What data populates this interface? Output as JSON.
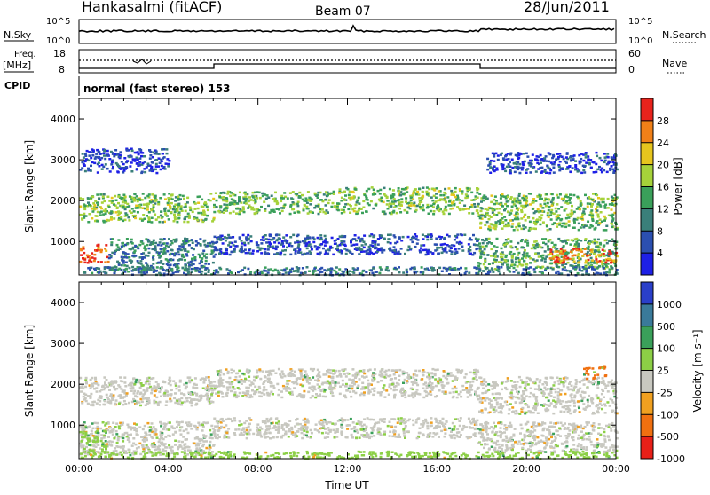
{
  "header": {
    "station": "Hankasalmi (fitACF)",
    "beam": "Beam 07",
    "date": "28/Jun/2011"
  },
  "top_panels": {
    "nsky_label": "N.Sky",
    "nsky_ticks": [
      "10^5",
      "10^0"
    ],
    "nsearch_label": "N.Search",
    "nsearch_ticks": [
      "10^5",
      "10^0"
    ],
    "freq_label_1": "Freq.",
    "freq_label_2": "[MHz]",
    "freq_ticks": [
      "18",
      "8"
    ],
    "nave_label": "Nave",
    "nave_ticks": [
      "60",
      "0"
    ],
    "cpid_label": "CPID",
    "cpid_text": "normal (fast stereo) 153"
  },
  "chart_data": [
    {
      "type": "heatmap",
      "panel": "power",
      "ylabel": "Slant Range [km]",
      "y_ticks": [
        "1000",
        "2000",
        "3000",
        "4000"
      ],
      "y_tick_values": [
        1000,
        2000,
        3000,
        4000
      ],
      "ylim": [
        180,
        4500
      ],
      "x_ticks": [
        "00:00",
        "04:00",
        "08:00",
        "12:00",
        "16:00",
        "20:00",
        "00:00"
      ],
      "x_tick_hours": [
        0,
        4,
        8,
        12,
        16,
        20,
        24
      ],
      "xlim_hours": [
        0,
        24
      ],
      "colorbar_label": "Power [dB]",
      "colorbar_ticks": [
        "4",
        "8",
        "12",
        "16",
        "20",
        "24",
        "28"
      ],
      "colorbar_tick_values": [
        4,
        8,
        12,
        16,
        20,
        24,
        28
      ],
      "colorbar_range": [
        0,
        32
      ],
      "colorbar_colors": [
        "#1e20e6",
        "#2b4fb0",
        "#3a7f7a",
        "#3aa05a",
        "#a6d23a",
        "#e6c51e",
        "#f08018",
        "#e8231c"
      ],
      "bands": [
        {
          "t0": 0.0,
          "t1": 6.0,
          "r0": 1500,
          "r1": 2200,
          "level": 16
        },
        {
          "t0": 6.0,
          "t1": 11.5,
          "r0": 1700,
          "r1": 2250,
          "level": 15
        },
        {
          "t0": 11.5,
          "t1": 17.8,
          "r0": 1700,
          "r1": 2350,
          "level": 16
        },
        {
          "t0": 17.8,
          "t1": 24.0,
          "r0": 1300,
          "r1": 2200,
          "level": 16
        },
        {
          "t0": 0.0,
          "t1": 1.3,
          "r0": 500,
          "r1": 950,
          "level": 28
        },
        {
          "t0": 1.3,
          "t1": 6.0,
          "r0": 300,
          "r1": 1100,
          "level": 10
        },
        {
          "t0": 6.0,
          "t1": 17.8,
          "r0": 700,
          "r1": 1200,
          "level": 6
        },
        {
          "t0": 17.8,
          "t1": 24.0,
          "r0": 350,
          "r1": 1100,
          "level": 14
        },
        {
          "t0": 21.0,
          "t1": 24.0,
          "r0": 500,
          "r1": 850,
          "level": 26
        },
        {
          "t0": 0.0,
          "t1": 24.0,
          "r0": 200,
          "r1": 400,
          "level": 9
        },
        {
          "t0": 0.0,
          "t1": 4.0,
          "r0": 2700,
          "r1": 3300,
          "level": 5
        },
        {
          "t0": 18.2,
          "t1": 24.0,
          "r0": 2700,
          "r1": 3200,
          "level": 5
        }
      ]
    },
    {
      "type": "heatmap",
      "panel": "velocity",
      "ylabel": "Slant Range [km]",
      "y_ticks": [
        "1000",
        "2000",
        "3000",
        "4000"
      ],
      "y_tick_values": [
        1000,
        2000,
        3000,
        4000
      ],
      "ylim": [
        180,
        4500
      ],
      "x_ticks": [
        "00:00",
        "04:00",
        "08:00",
        "12:00",
        "16:00",
        "20:00",
        "00:00"
      ],
      "x_tick_hours": [
        0,
        4,
        8,
        12,
        16,
        20,
        24
      ],
      "xlim_hours": [
        0,
        24
      ],
      "xlabel": "Time UT",
      "colorbar_label": "Velocity [m s⁻¹]",
      "colorbar_ticks": [
        "1000",
        "500",
        "100",
        "25",
        "-25",
        "-100",
        "-500",
        "-1000"
      ],
      "colorbar_colors": [
        "#2a3fc9",
        "#3a7a9a",
        "#3aa05a",
        "#8ccf46",
        "#c8c8c0",
        "#f0a020",
        "#f07010",
        "#e82018"
      ],
      "bands": [
        {
          "t0": 0.0,
          "t1": 6.0,
          "r0": 1500,
          "r1": 2200,
          "level": 4
        },
        {
          "t0": 6.0,
          "t1": 17.8,
          "r0": 1700,
          "r1": 2400,
          "level": 4
        },
        {
          "t0": 17.8,
          "t1": 24.0,
          "r0": 1300,
          "r1": 2200,
          "level": 4
        },
        {
          "t0": 0.0,
          "t1": 6.0,
          "r0": 300,
          "r1": 1100,
          "level": 4
        },
        {
          "t0": 6.0,
          "t1": 17.8,
          "r0": 700,
          "r1": 1200,
          "level": 4
        },
        {
          "t0": 17.8,
          "t1": 24.0,
          "r0": 350,
          "r1": 1100,
          "level": 4
        },
        {
          "t0": 0.0,
          "t1": 1.2,
          "r0": 400,
          "r1": 900,
          "level": 3
        },
        {
          "t0": 22.5,
          "t1": 23.5,
          "r0": 2150,
          "r1": 2450,
          "level": 6
        },
        {
          "t0": 0.0,
          "t1": 24.0,
          "r0": 200,
          "r1": 380,
          "level": 3
        }
      ]
    }
  ]
}
